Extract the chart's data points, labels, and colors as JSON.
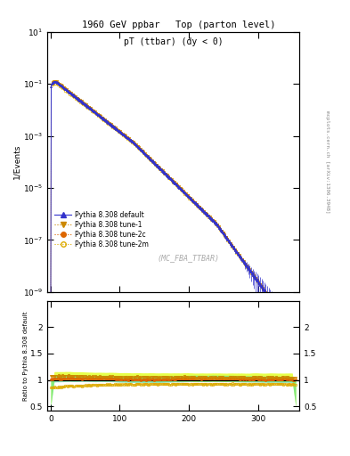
{
  "title_left": "1960 GeV ppbar",
  "title_right": "Top (parton level)",
  "ylabel_main": "1/Events",
  "ylabel_ratio": "Ratio to Pythia 8.308 default",
  "plot_label": "pT (ttbar) (dy < 0)",
  "watermark": "(MC_FBA_TTBAR)",
  "right_label": "mcplots.cern.ch [arXiv:1306.3948]",
  "ylim_main": [
    1e-09,
    10.0
  ],
  "ylim_ratio": [
    0.42,
    2.5
  ],
  "xlim": [
    -5,
    360
  ],
  "xticks": [
    0,
    100,
    200,
    300
  ],
  "color_default": "#3333cc",
  "color_tune1": "#cc8800",
  "color_tune2c": "#dd6600",
  "color_tune2m": "#ddaa00",
  "band_tune1": "#ddff00",
  "band_tune2c": "#44ddaa",
  "seed": 12345
}
